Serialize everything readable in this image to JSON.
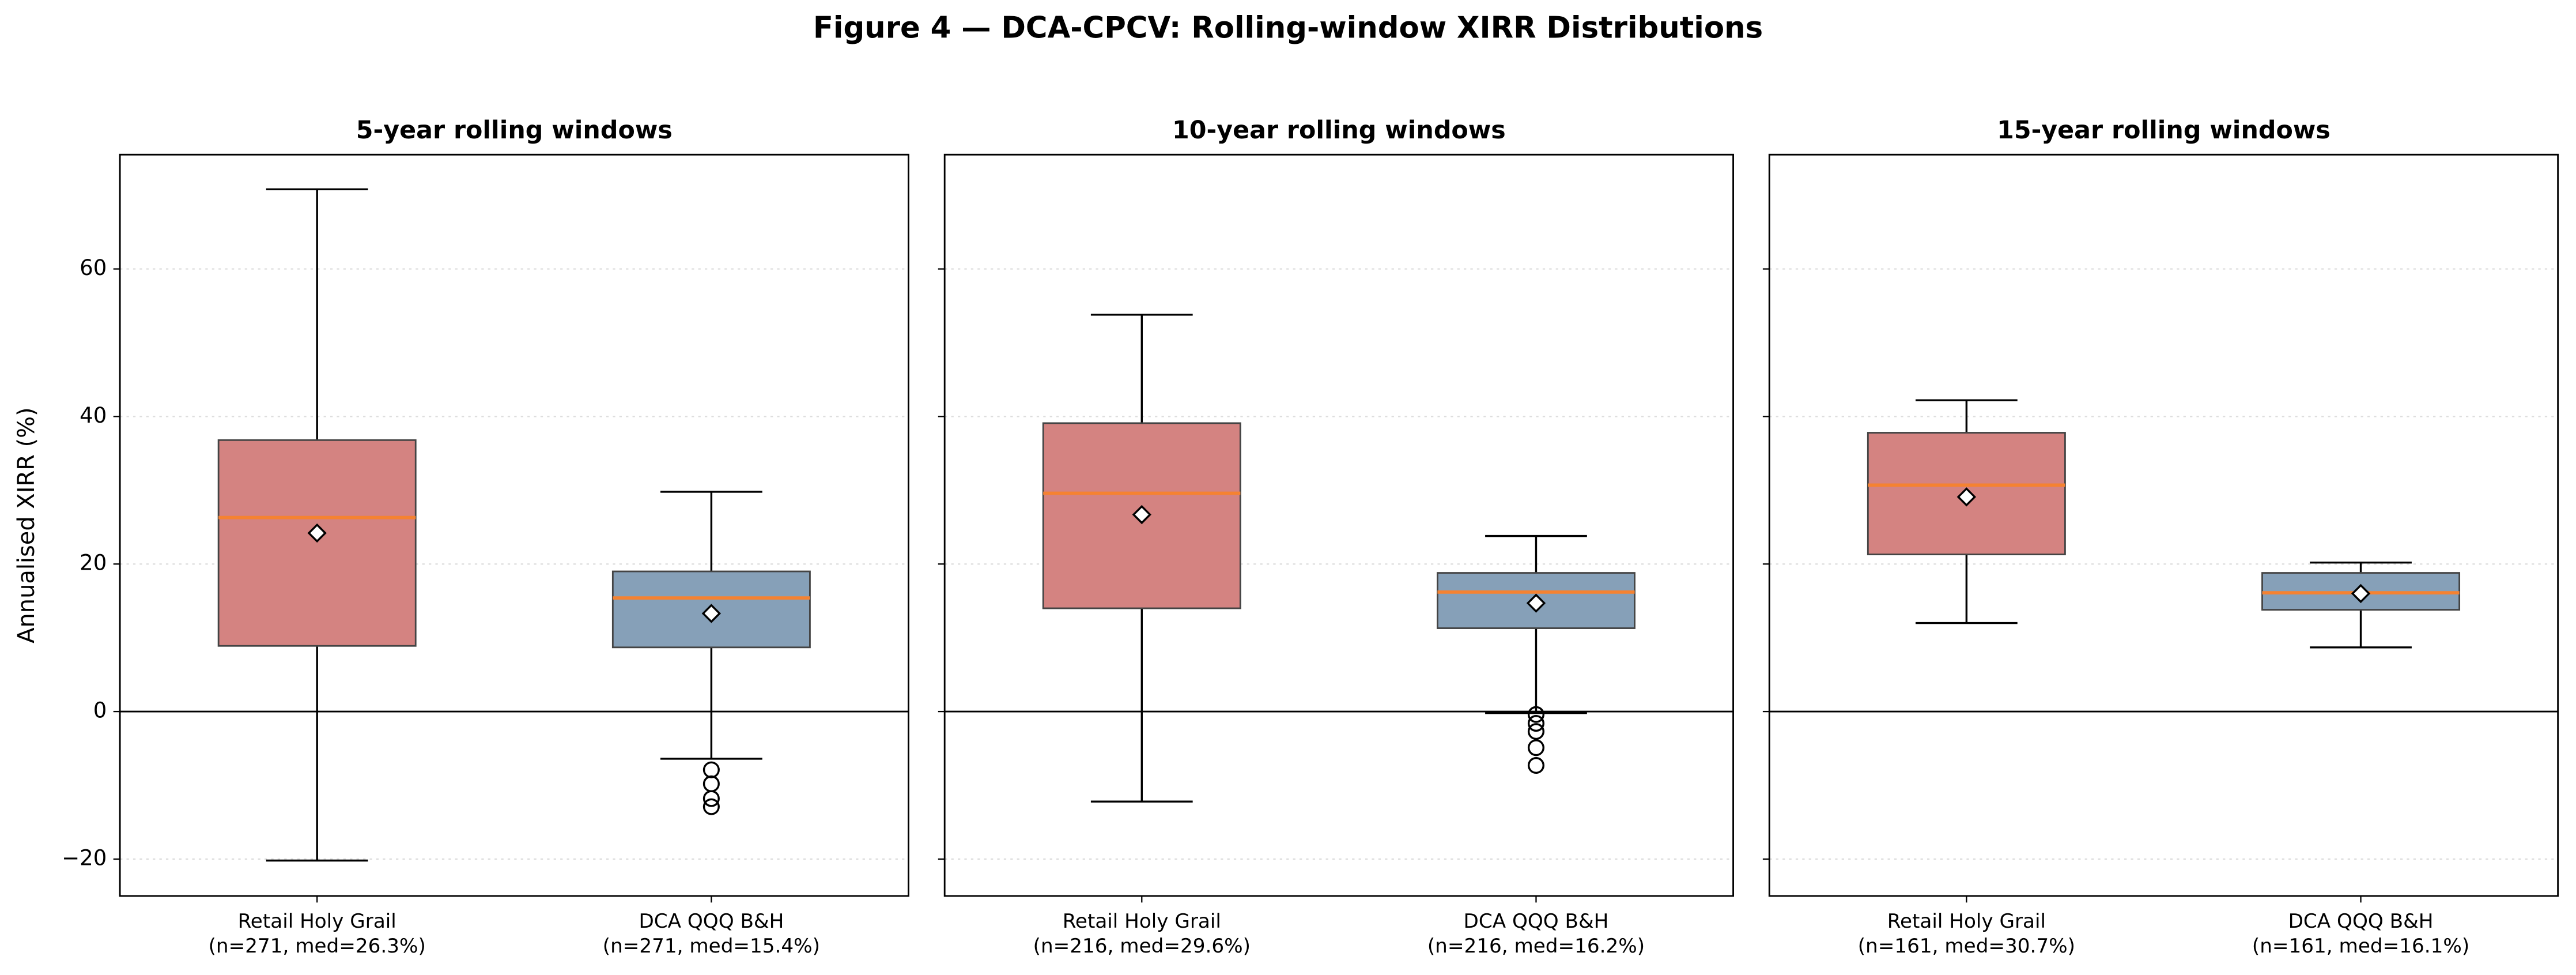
{
  "title": "Figure 4 — DCA-CPCV: Rolling-window XIRR Distributions",
  "chart_data": [
    {
      "type": "box",
      "title": "5-year rolling windows",
      "ylabel": "Annualised XIRR (%)",
      "ylim": [
        -25,
        75.5
      ],
      "yticks": [
        {
          "value": -20,
          "label": "−20"
        },
        0,
        20,
        40,
        60
      ],
      "grid": true,
      "reference_line": 0,
      "median_color": "#f58231",
      "series": [
        {
          "name": "Retail Holy Grail",
          "note": "(n=271, med=26.3%)",
          "color": "#d48381",
          "whislo": -20.2,
          "q1": 8.9,
          "median": 26.3,
          "q3": 36.8,
          "whishi": 70.8,
          "mean": 24.2,
          "fliers": []
        },
        {
          "name": "DCA QQQ B&H",
          "note": "(n=271, med=15.4%)",
          "color": "#86a0b8",
          "whislo": -6.4,
          "q1": 8.7,
          "median": 15.4,
          "q3": 19.0,
          "whishi": 29.8,
          "mean": 13.3,
          "fliers": [
            -7.9,
            -9.8,
            -11.8,
            -12.9
          ]
        }
      ]
    },
    {
      "type": "box",
      "title": "10-year rolling windows",
      "reference_line": 0,
      "series": [
        {
          "name": "Retail Holy Grail",
          "note": "(n=216, med=29.6%)",
          "color": "#d48381",
          "whislo": -12.2,
          "q1": 14.0,
          "median": 29.6,
          "q3": 39.1,
          "whishi": 53.8,
          "mean": 26.7,
          "fliers": []
        },
        {
          "name": "DCA QQQ B&H",
          "note": "(n=216, med=16.2%)",
          "color": "#86a0b8",
          "whislo": -0.2,
          "q1": 11.3,
          "median": 16.2,
          "q3": 18.8,
          "whishi": 23.8,
          "mean": 14.7,
          "fliers": [
            -0.4,
            -1.6,
            -2.7,
            -4.9,
            -7.3
          ]
        }
      ]
    },
    {
      "type": "box",
      "title": "15-year rolling windows",
      "reference_line": 0,
      "series": [
        {
          "name": "Retail Holy Grail",
          "note": "(n=161, med=30.7%)",
          "color": "#d48381",
          "whislo": 12.0,
          "q1": 21.3,
          "median": 30.7,
          "q3": 37.8,
          "whishi": 42.2,
          "mean": 29.1,
          "fliers": []
        },
        {
          "name": "DCA QQQ B&H",
          "note": "(n=161, med=16.1%)",
          "color": "#86a0b8",
          "whislo": 8.7,
          "q1": 13.8,
          "median": 16.1,
          "q3": 18.8,
          "whishi": 20.2,
          "mean": 16.0,
          "fliers": []
        }
      ]
    }
  ]
}
